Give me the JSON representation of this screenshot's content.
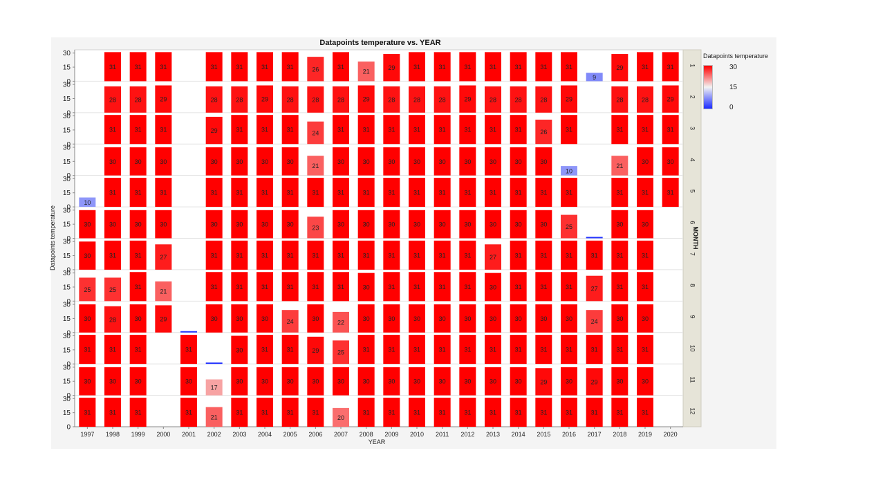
{
  "chart_data": {
    "type": "bar",
    "title": "Datapoints temperature vs. YEAR",
    "xlabel": "YEAR",
    "ylabel": "Datapoints temperature",
    "panel_label": "MONTH",
    "ylim": [
      0,
      32
    ],
    "y_ticks": [
      "0",
      "15",
      "30"
    ],
    "categories": [
      "1997",
      "1998",
      "1999",
      "2000",
      "2001",
      "2002",
      "2003",
      "2004",
      "2005",
      "2006",
      "2007",
      "2008",
      "2009",
      "2010",
      "2011",
      "2012",
      "2013",
      "2014",
      "2015",
      "2016",
      "2017",
      "2018",
      "2019",
      "2020"
    ],
    "months": [
      "1",
      "2",
      "3",
      "4",
      "5",
      "6",
      "7",
      "8",
      "9",
      "10",
      "11",
      "12"
    ],
    "values": [
      [
        null,
        31,
        31,
        31,
        null,
        31,
        31,
        31,
        31,
        26,
        31,
        21,
        29,
        31,
        31,
        31,
        31,
        31,
        31,
        31,
        9,
        29,
        31,
        31
      ],
      [
        null,
        28,
        28,
        29,
        null,
        28,
        28,
        29,
        28,
        28,
        28,
        29,
        28,
        28,
        28,
        29,
        28,
        28,
        28,
        29,
        null,
        28,
        28,
        29
      ],
      [
        null,
        31,
        31,
        31,
        null,
        29,
        31,
        31,
        31,
        24,
        31,
        31,
        31,
        31,
        31,
        31,
        31,
        31,
        26,
        31,
        null,
        31,
        31,
        31
      ],
      [
        null,
        30,
        30,
        30,
        null,
        30,
        30,
        30,
        30,
        21,
        30,
        30,
        30,
        30,
        30,
        30,
        30,
        30,
        30,
        10,
        null,
        21,
        30,
        30
      ],
      [
        10,
        31,
        31,
        31,
        null,
        31,
        31,
        31,
        31,
        31,
        31,
        31,
        31,
        31,
        31,
        31,
        31,
        31,
        31,
        31,
        null,
        31,
        31,
        31
      ],
      [
        30,
        30,
        30,
        30,
        null,
        30,
        30,
        30,
        30,
        23,
        30,
        30,
        30,
        30,
        30,
        30,
        30,
        30,
        30,
        25,
        1,
        30,
        30,
        null
      ],
      [
        30,
        31,
        31,
        27,
        null,
        31,
        31,
        31,
        31,
        31,
        31,
        31,
        31,
        31,
        31,
        31,
        27,
        31,
        31,
        31,
        31,
        31,
        31,
        null
      ],
      [
        25,
        25,
        31,
        21,
        null,
        31,
        31,
        31,
        31,
        31,
        31,
        30,
        31,
        31,
        31,
        31,
        30,
        31,
        31,
        31,
        27,
        31,
        31,
        null
      ],
      [
        30,
        28,
        30,
        29,
        1,
        30,
        30,
        30,
        24,
        30,
        22,
        30,
        30,
        30,
        30,
        30,
        30,
        30,
        30,
        30,
        24,
        30,
        30,
        null
      ],
      [
        31,
        31,
        31,
        null,
        31,
        1,
        30,
        31,
        31,
        29,
        25,
        31,
        31,
        31,
        31,
        31,
        31,
        31,
        31,
        31,
        31,
        31,
        31,
        null
      ],
      [
        30,
        30,
        30,
        null,
        30,
        17,
        30,
        30,
        30,
        30,
        30,
        30,
        30,
        30,
        30,
        30,
        30,
        30,
        29,
        30,
        29,
        30,
        30,
        null
      ],
      [
        31,
        31,
        31,
        null,
        31,
        21,
        31,
        31,
        31,
        31,
        20,
        31,
        31,
        31,
        31,
        31,
        31,
        31,
        31,
        31,
        31,
        31,
        31,
        null
      ]
    ],
    "color_scale": {
      "label": "Datapoints temperature",
      "min": 0,
      "mid": 15,
      "max": 30,
      "colors": {
        "high": "#ff0000",
        "mid": "#f3f3f3",
        "low": "#1a2bff"
      }
    },
    "legend_ticks": [
      "30",
      "15",
      "0"
    ],
    "legend_position": "right",
    "grid": false
  }
}
